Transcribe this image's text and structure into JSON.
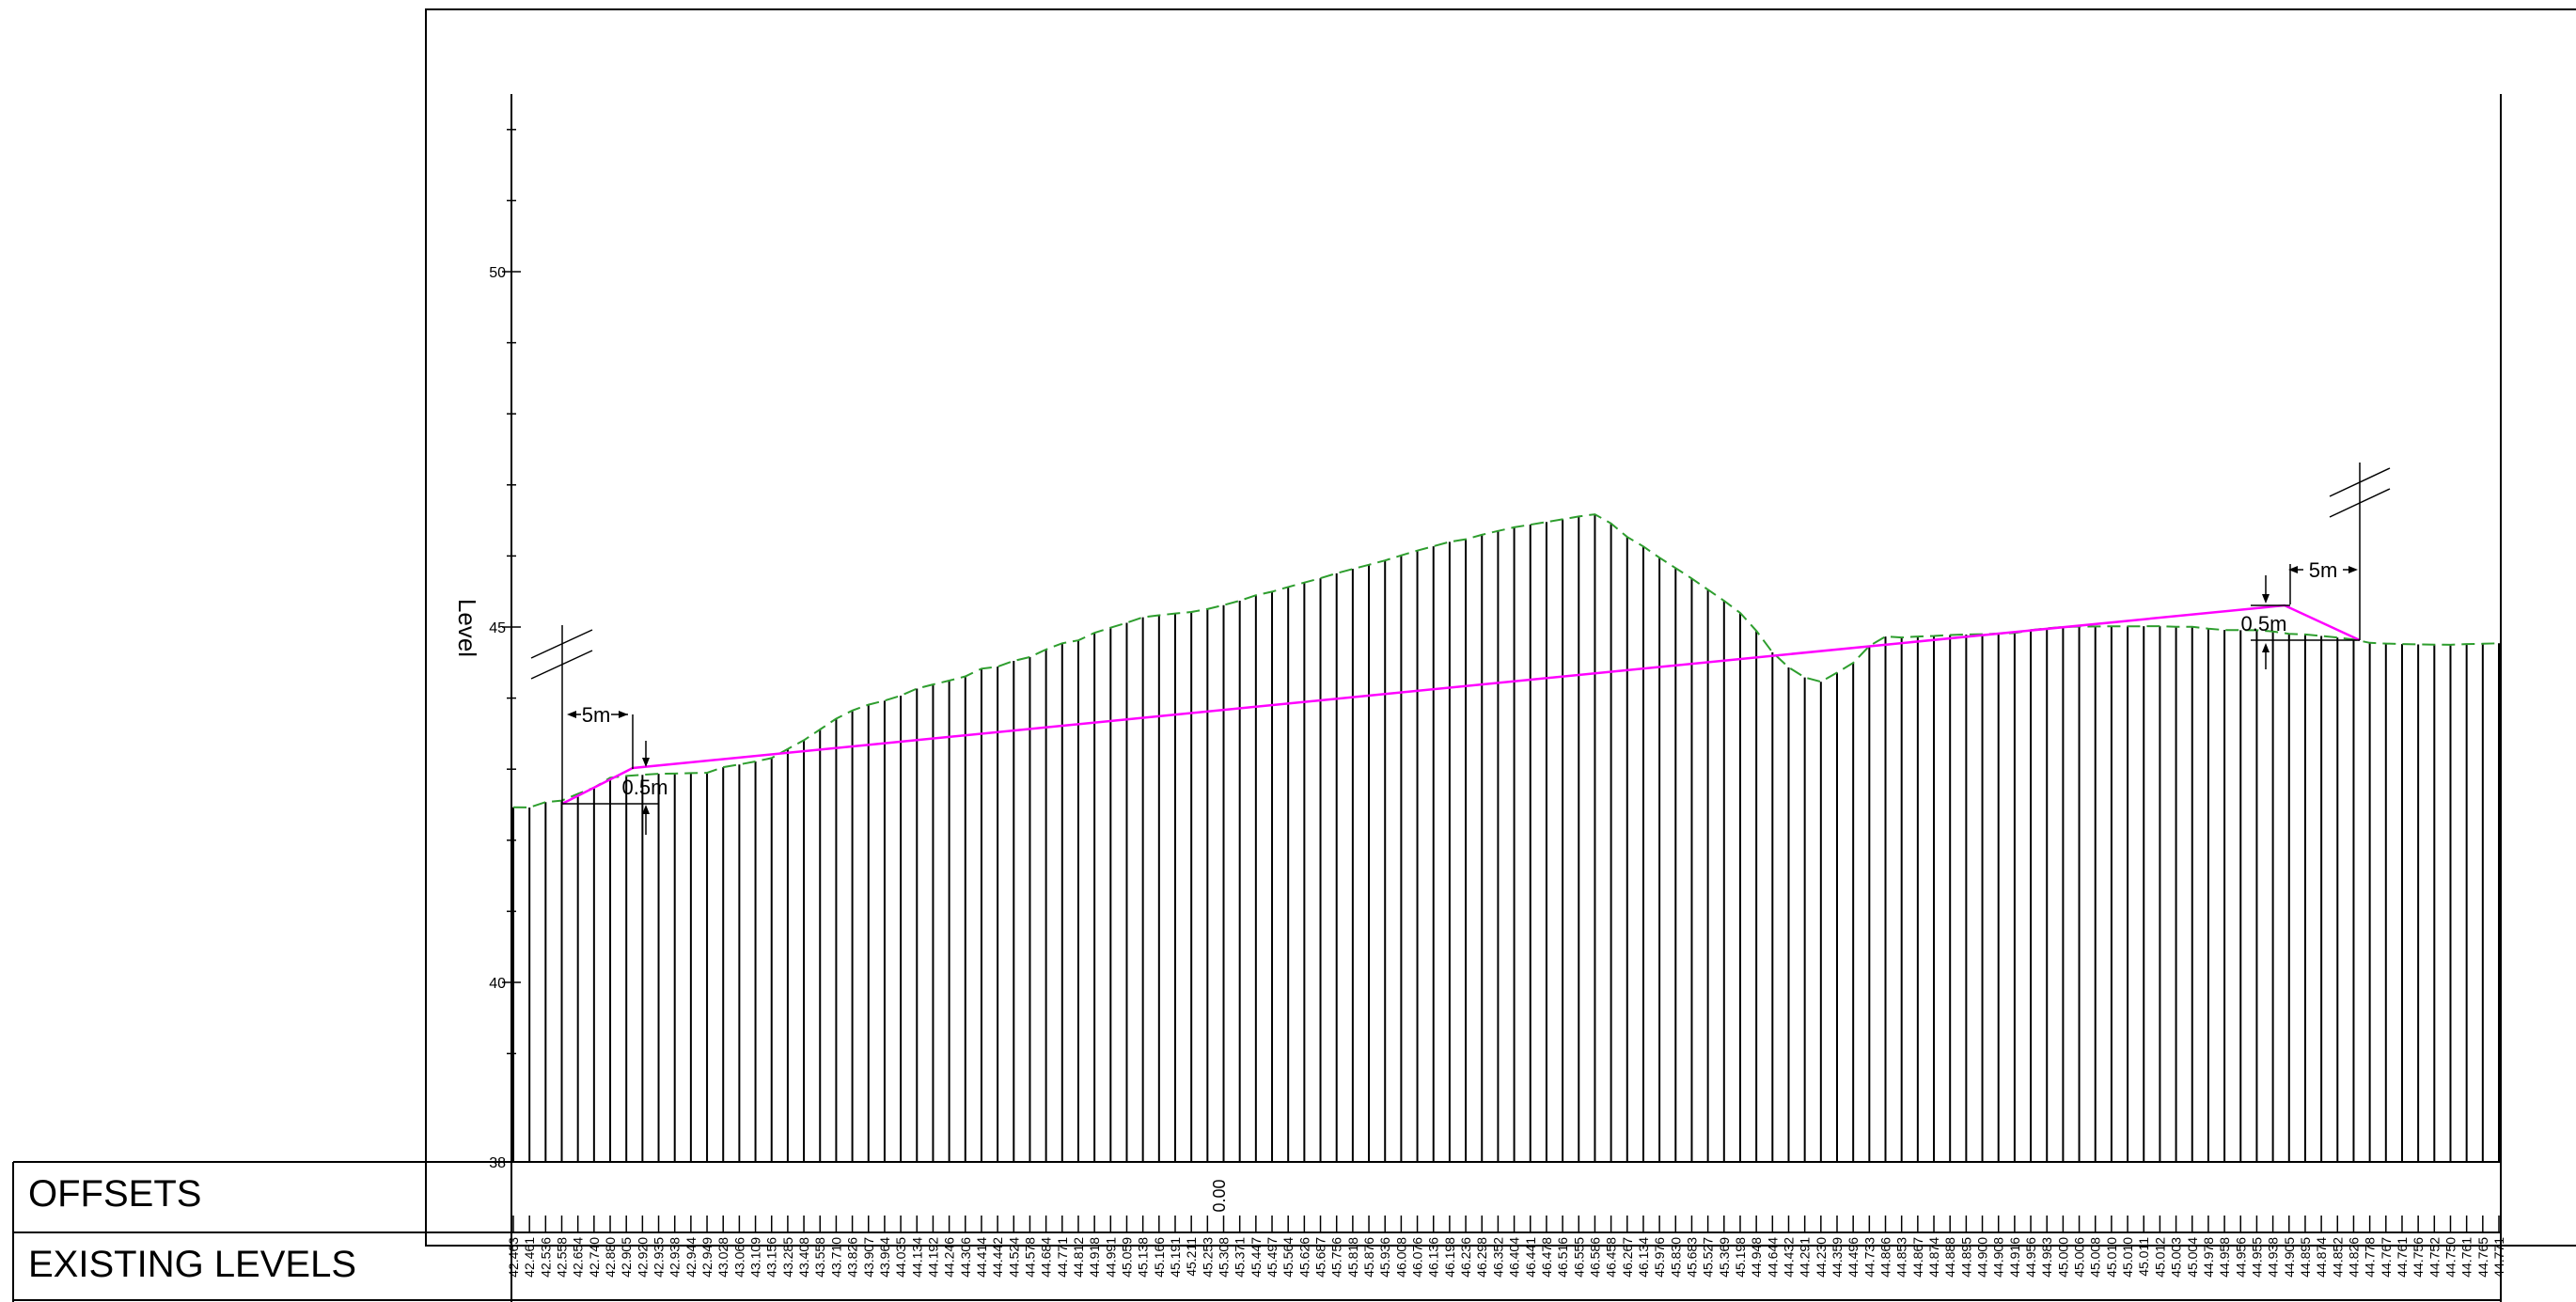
{
  "axis": {
    "ylabel": "Level",
    "ticks": [
      {
        "value": 50,
        "label": "50"
      },
      {
        "value": 45,
        "label": "45"
      },
      {
        "value": 40,
        "label": "40"
      },
      {
        "value": 37.5,
        "label": "38"
      }
    ]
  },
  "rows": {
    "offsets": "OFFSETS",
    "existing_levels": "EXISTING LEVELS"
  },
  "offset_zero_label": "0.00",
  "annotations": {
    "left_width": "5m",
    "left_height": "0.5m",
    "right_width": "5m",
    "right_height": "0.5m"
  },
  "colors": {
    "design_line": "#ff00ff",
    "ground_line": "#2e9e2e",
    "ink": "#000000"
  },
  "existing_levels": [
    "42.463",
    "42.461",
    "42.536",
    "42.558",
    "42.654",
    "42.740",
    "42.880",
    "42.905",
    "42.920",
    "42.935",
    "42.938",
    "42.944",
    "42.949",
    "43.028",
    "43.066",
    "43.109",
    "43.156",
    "43.285",
    "43.408",
    "43.558",
    "43.710",
    "43.826",
    "43.907",
    "43.964",
    "44.035",
    "44.134",
    "44.192",
    "44.246",
    "44.306",
    "44.414",
    "44.442",
    "44.524",
    "44.578",
    "44.684",
    "44.771",
    "44.812",
    "44.918",
    "44.991",
    "45.059",
    "45.138",
    "45.166",
    "45.191",
    "45.211",
    "45.253",
    "45.308",
    "45.371",
    "45.447",
    "45.497",
    "45.564",
    "45.626",
    "45.687",
    "45.756",
    "45.818",
    "45.876",
    "45.936",
    "46.008",
    "46.076",
    "46.136",
    "46.198",
    "46.236",
    "46.298",
    "46.352",
    "46.404",
    "46.441",
    "46.478",
    "46.516",
    "46.555",
    "46.586",
    "46.458",
    "46.267",
    "46.134",
    "45.976",
    "45.830",
    "45.683",
    "45.527",
    "45.369",
    "45.198",
    "44.948",
    "44.644",
    "44.432",
    "44.291",
    "44.230",
    "44.359",
    "44.496",
    "44.733",
    "44.866",
    "44.853",
    "44.867",
    "44.874",
    "44.888",
    "44.895",
    "44.900",
    "44.908",
    "44.916",
    "44.956",
    "44.983",
    "45.000",
    "45.006",
    "45.008",
    "45.010",
    "45.010",
    "45.011",
    "45.012",
    "45.003",
    "45.004",
    "44.978",
    "44.958",
    "44.956",
    "44.955",
    "44.938",
    "44.905",
    "44.895",
    "44.874",
    "44.852",
    "44.826",
    "44.778",
    "44.767",
    "44.761",
    "44.756",
    "44.752",
    "44.750",
    "44.761",
    "44.765",
    "44.771"
  ]
}
